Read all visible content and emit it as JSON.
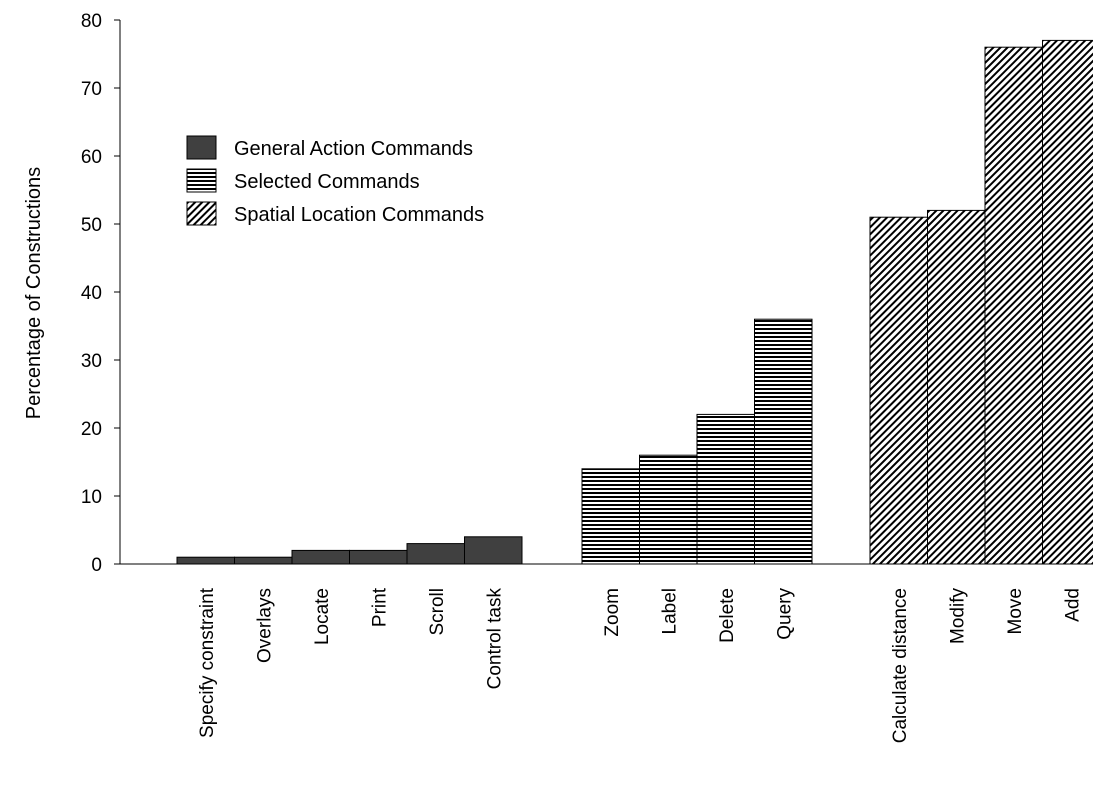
{
  "chart_data": {
    "type": "bar",
    "ylabel": "Percentage of Constructions",
    "xlabel": "",
    "ylim": [
      0,
      80
    ],
    "yticks": [
      0,
      10,
      20,
      30,
      40,
      50,
      60,
      70,
      80
    ],
    "grid": false,
    "legend_position": "top-left",
    "series": [
      {
        "name": "General Action Commands",
        "pattern": "solid",
        "color": "#404040",
        "categories": [
          "Specify  constraint",
          "Overlays",
          "Locate",
          "Print",
          "Scroll",
          "Control task"
        ],
        "values": [
          1,
          1,
          2,
          2,
          3,
          4
        ]
      },
      {
        "name": "Selected Commands",
        "pattern": "horizontal-stripes",
        "color": "#000000",
        "categories": [
          "Zoom",
          "Label",
          "Delete",
          "Query"
        ],
        "values": [
          14,
          16,
          22,
          36
        ]
      },
      {
        "name": "Spatial Location Commands",
        "pattern": "diagonal-hatch",
        "color": "#000000",
        "categories": [
          "Calculate distance",
          "Modify",
          "Move",
          "Add"
        ],
        "values": [
          51,
          52,
          76,
          77
        ]
      }
    ]
  }
}
